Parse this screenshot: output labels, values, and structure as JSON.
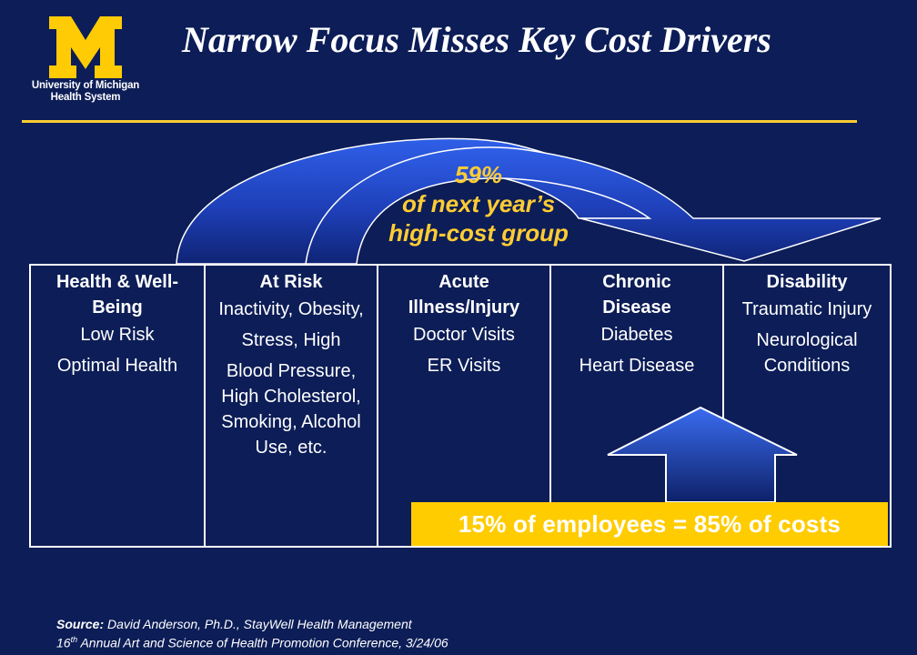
{
  "logo": {
    "letter": "M",
    "text_line1": "University of Michigan",
    "text_line2": "Health System",
    "trademark": "®"
  },
  "title": "Narrow Focus Misses Key Cost Drivers",
  "callout": {
    "line1": "59%",
    "line2": "of next year’s",
    "line3": "high-cost group"
  },
  "columns": [
    {
      "title": "Health & Well-Being",
      "items": [
        "Low Risk",
        "Optimal Health"
      ]
    },
    {
      "title": "At Risk",
      "items": [
        "Inactivity, Obesity,",
        "Stress, High",
        "Blood Pressure, High Cholesterol, Smoking, Alcohol Use, etc."
      ]
    },
    {
      "title": "Acute Illness/Injury",
      "items": [
        "Doctor Visits",
        "ER Visits"
      ]
    },
    {
      "title": "Chronic Disease",
      "items": [
        "Diabetes",
        "Heart Disease"
      ]
    },
    {
      "title": "Disability",
      "items": [
        "Traumatic Injury",
        "Neurological Conditions"
      ]
    }
  ],
  "banner": "15% of employees = 85% of costs",
  "source": {
    "label": "Source:",
    "author": "David Anderson, Ph.D., StayWell Health Management",
    "conference_ordinal": "16",
    "conference_suffix": "th",
    "conference": "Annual Art and Science of  Health Promotion Conference, 3/24/06"
  },
  "colors": {
    "background": "#0c1d57",
    "accent_yellow": "#ffcc33",
    "banner_yellow": "#ffcc00",
    "arrow_blue": "#2a56e0"
  }
}
